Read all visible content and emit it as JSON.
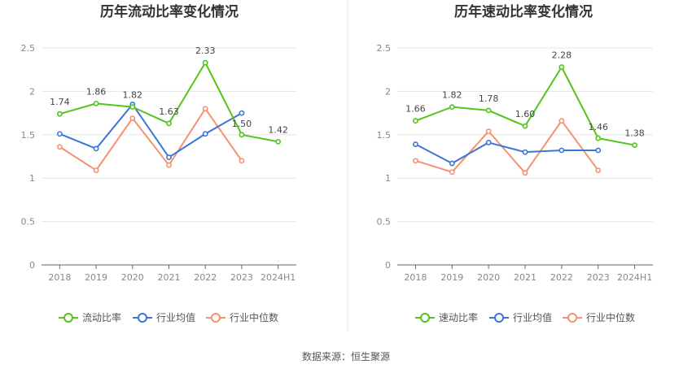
{
  "colors": {
    "primary": "#52c41a",
    "industry_avg": "#3a76d8",
    "industry_median": "#f4926e"
  },
  "source_label": "数据来源：恒生聚源",
  "chart_data": [
    {
      "type": "line",
      "title": "历年流动比率变化情况",
      "categories": [
        "2018",
        "2019",
        "2020",
        "2021",
        "2022",
        "2023",
        "2024H1"
      ],
      "ylim": [
        0,
        2.5
      ],
      "yticks": [
        "0",
        "0.5",
        "1",
        "1.5",
        "2",
        "2.5"
      ],
      "grid": true,
      "legend_position": "bottom",
      "series": [
        {
          "name": "流动比率",
          "values": [
            1.74,
            1.86,
            1.82,
            1.63,
            2.33,
            1.5,
            1.42
          ],
          "labels": [
            "1.74",
            "1.86",
            "1.82",
            "1.63",
            "2.33",
            "1.50",
            "1.42"
          ]
        },
        {
          "name": "行业均值",
          "values": [
            1.51,
            1.34,
            1.85,
            1.24,
            1.51,
            1.75,
            null
          ]
        },
        {
          "name": "行业中位数",
          "values": [
            1.36,
            1.09,
            1.69,
            1.15,
            1.8,
            1.2,
            null
          ]
        }
      ]
    },
    {
      "type": "line",
      "title": "历年速动比率变化情况",
      "categories": [
        "2018",
        "2019",
        "2020",
        "2021",
        "2022",
        "2023",
        "2024H1"
      ],
      "ylim": [
        0,
        2.5
      ],
      "yticks": [
        "0",
        "0.5",
        "1",
        "1.5",
        "2",
        "2.5"
      ],
      "grid": true,
      "legend_position": "bottom",
      "series": [
        {
          "name": "速动比率",
          "values": [
            1.66,
            1.82,
            1.78,
            1.6,
            2.28,
            1.46,
            1.38
          ],
          "labels": [
            "1.66",
            "1.82",
            "1.78",
            "1.60",
            "2.28",
            "1.46",
            "1.38"
          ]
        },
        {
          "name": "行业均值",
          "values": [
            1.39,
            1.17,
            1.41,
            1.3,
            1.32,
            1.32,
            null
          ]
        },
        {
          "name": "行业中位数",
          "values": [
            1.2,
            1.07,
            1.54,
            1.06,
            1.66,
            1.09,
            null
          ]
        }
      ]
    }
  ]
}
